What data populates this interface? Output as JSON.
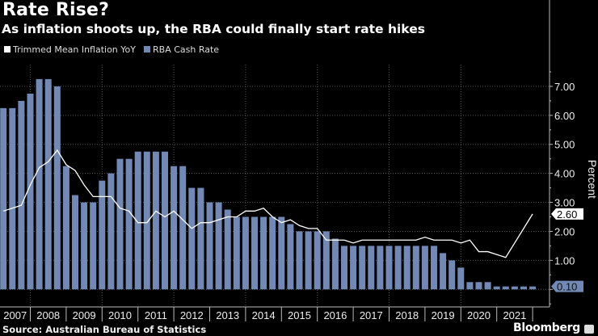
{
  "chart_data": {
    "type": "bar+line",
    "title": "Rate Rise?",
    "subtitle": "As inflation shoots up, the RBA could finally start rate hikes",
    "ylabel": "Percent",
    "ylim": [
      -0.55,
      7.75
    ],
    "yticks": [
      "1.00",
      "2.00",
      "3.00",
      "4.00",
      "5.00",
      "6.00",
      "7.00"
    ],
    "years": [
      "2007",
      "2008",
      "2009",
      "2010",
      "2011",
      "2012",
      "2013",
      "2014",
      "2015",
      "2016",
      "2017",
      "2018",
      "2019",
      "2020",
      "2021"
    ],
    "x": [
      "2007 Q1",
      "2007 Q2",
      "2007 Q3",
      "2007 Q4",
      "2008 Q1",
      "2008 Q2",
      "2008 Q3",
      "2008 Q4",
      "2009 Q1",
      "2009 Q2",
      "2009 Q3",
      "2009 Q4",
      "2010 Q1",
      "2010 Q2",
      "2010 Q3",
      "2010 Q4",
      "2011 Q1",
      "2011 Q2",
      "2011 Q3",
      "2011 Q4",
      "2012 Q1",
      "2012 Q2",
      "2012 Q3",
      "2012 Q4",
      "2013 Q1",
      "2013 Q2",
      "2013 Q3",
      "2013 Q4",
      "2014 Q1",
      "2014 Q2",
      "2014 Q3",
      "2014 Q4",
      "2015 Q1",
      "2015 Q2",
      "2015 Q3",
      "2015 Q4",
      "2016 Q1",
      "2016 Q2",
      "2016 Q3",
      "2016 Q4",
      "2017 Q1",
      "2017 Q2",
      "2017 Q3",
      "2017 Q4",
      "2018 Q1",
      "2018 Q2",
      "2018 Q3",
      "2018 Q4",
      "2019 Q1",
      "2019 Q2",
      "2019 Q3",
      "2019 Q4",
      "2020 Q1",
      "2020 Q2",
      "2020 Q3",
      "2020 Q4",
      "2021 Q1",
      "2021 Q2",
      "2021 Q3",
      "2021 Q4"
    ],
    "grid": true,
    "legend_placement": "top-left",
    "series": [
      {
        "name": "Trimmed Mean Inflation YoY",
        "type": "line",
        "color": "#ffffff",
        "values": [
          2.7,
          2.8,
          2.9,
          3.6,
          4.2,
          4.4,
          4.8,
          4.3,
          4.1,
          3.6,
          3.2,
          3.2,
          3.2,
          2.8,
          2.7,
          2.3,
          2.3,
          2.7,
          2.5,
          2.7,
          2.4,
          2.1,
          2.3,
          2.3,
          2.4,
          2.5,
          2.5,
          2.7,
          2.7,
          2.8,
          2.5,
          2.3,
          2.4,
          2.2,
          2.1,
          2.1,
          1.7,
          1.7,
          1.7,
          1.6,
          1.7,
          1.7,
          1.7,
          1.7,
          1.7,
          1.7,
          1.7,
          1.8,
          1.7,
          1.7,
          1.7,
          1.6,
          1.7,
          1.3,
          1.3,
          1.2,
          1.1,
          1.6,
          2.1,
          2.6
        ]
      },
      {
        "name": "RBA Cash Rate",
        "type": "bar",
        "color": "#7189b4",
        "values": [
          6.25,
          6.25,
          6.5,
          6.75,
          7.25,
          7.25,
          7.0,
          4.25,
          3.25,
          3.0,
          3.0,
          3.75,
          4.0,
          4.5,
          4.5,
          4.75,
          4.75,
          4.75,
          4.75,
          4.25,
          4.25,
          3.5,
          3.5,
          3.0,
          3.0,
          2.75,
          2.5,
          2.5,
          2.5,
          2.5,
          2.5,
          2.5,
          2.25,
          2.0,
          2.0,
          2.0,
          2.0,
          1.75,
          1.5,
          1.5,
          1.5,
          1.5,
          1.5,
          1.5,
          1.5,
          1.5,
          1.5,
          1.5,
          1.5,
          1.25,
          1.0,
          0.75,
          0.25,
          0.25,
          0.25,
          0.1,
          0.1,
          0.1,
          0.1,
          0.1
        ]
      }
    ],
    "last_value_labels": [
      "2.60",
      "0.10"
    ]
  },
  "source": "Source: Australian Bureau of Statistics",
  "brand": "Bloomberg"
}
